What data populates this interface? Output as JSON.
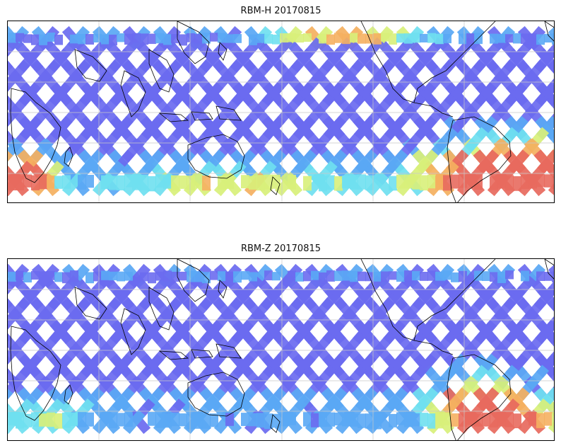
{
  "figure": {
    "panels": [
      {
        "id": "rbm-h",
        "title": "RBM-H 20170815",
        "high_zone": "south-america-south-atlantic",
        "intensity": "high"
      },
      {
        "id": "rbm-z",
        "title": "RBM-Z 20170815",
        "high_zone": "south-america",
        "intensity": "moderate"
      }
    ]
  },
  "chart_data": [
    {
      "type": "heatmap",
      "title": "RBM-H 20170815",
      "projection": "equirectangular, central longitude ~150E",
      "grid": true,
      "coastlines": true,
      "colormap": "jet",
      "swath_pattern": "crossing satellite orbit tracks",
      "hotspots": [
        "southern South America / South Atlantic",
        "southern Indian Ocean near Africa"
      ]
    },
    {
      "type": "heatmap",
      "title": "RBM-Z 20170815",
      "projection": "equirectangular, central longitude ~150E",
      "grid": true,
      "coastlines": true,
      "colormap": "jet",
      "swath_pattern": "crossing satellite orbit tracks",
      "hotspots": [
        "southern South America"
      ]
    }
  ],
  "colors": {
    "low": "#6b6bf0",
    "low_mid": "#5aa8f5",
    "mid": "#6fe0f0",
    "mid_high": "#d8f07a",
    "high": "#f5b060",
    "max": "#e86a5e",
    "coast": "#000000",
    "grid": "#c8c8c8"
  }
}
